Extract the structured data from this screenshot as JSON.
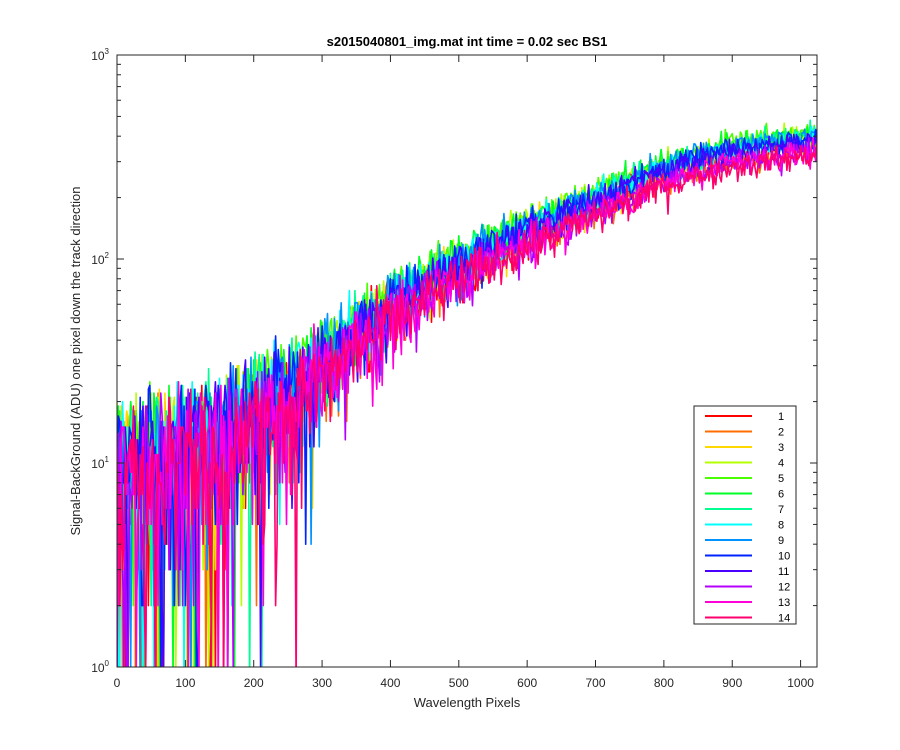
{
  "chart_data": {
    "type": "line",
    "title": "s2015040801_img.mat int time = 0.02 sec   BS1",
    "xlabel": "Wavelength Pixels",
    "ylabel": "Signal-BackGround (ADU) one pixel down the track direction",
    "xlim": [
      0,
      1024
    ],
    "ylim": [
      1,
      1000
    ],
    "yscale": "log",
    "grid": false,
    "legend_position": "bottom-right",
    "x_ticks": [
      0,
      100,
      200,
      300,
      400,
      500,
      600,
      700,
      800,
      900,
      1000
    ],
    "y_ticks": [
      1,
      10,
      100,
      1000
    ],
    "y_tick_labels": [
      {
        "base": "10",
        "exp": "0"
      },
      {
        "base": "10",
        "exp": "1"
      },
      {
        "base": "10",
        "exp": "2"
      },
      {
        "base": "10",
        "exp": "3"
      }
    ],
    "series_trend": {
      "x": [
        0,
        50,
        100,
        150,
        200,
        250,
        300,
        350,
        400,
        450,
        500,
        550,
        600,
        650,
        700,
        750,
        800,
        850,
        900,
        950,
        1024
      ],
      "y": [
        9,
        10,
        11,
        13,
        17,
        22,
        30,
        43,
        58,
        74,
        92,
        112,
        135,
        160,
        190,
        225,
        265,
        300,
        330,
        350,
        380
      ]
    },
    "series": [
      {
        "name": "1",
        "color": "#ff0000",
        "scale": 0.98
      },
      {
        "name": "2",
        "color": "#ff6d00",
        "scale": 0.94
      },
      {
        "name": "3",
        "color": "#ffd800",
        "scale": 1.03
      },
      {
        "name": "4",
        "color": "#b7ff00",
        "scale": 1.08
      },
      {
        "name": "5",
        "color": "#49ff00",
        "scale": 1.12
      },
      {
        "name": "6",
        "color": "#00ff24",
        "scale": 1.1
      },
      {
        "name": "7",
        "color": "#00ff92",
        "scale": 1.06
      },
      {
        "name": "8",
        "color": "#00ffff",
        "scale": 1.05
      },
      {
        "name": "9",
        "color": "#0092ff",
        "scale": 1.07
      },
      {
        "name": "10",
        "color": "#0024ff",
        "scale": 1.04
      },
      {
        "name": "11",
        "color": "#4900ff",
        "scale": 1.0
      },
      {
        "name": "12",
        "color": "#b600ff",
        "scale": 0.9
      },
      {
        "name": "13",
        "color": "#ff00db",
        "scale": 0.88
      },
      {
        "name": "14",
        "color": "#ff006d",
        "scale": 0.86
      }
    ]
  }
}
